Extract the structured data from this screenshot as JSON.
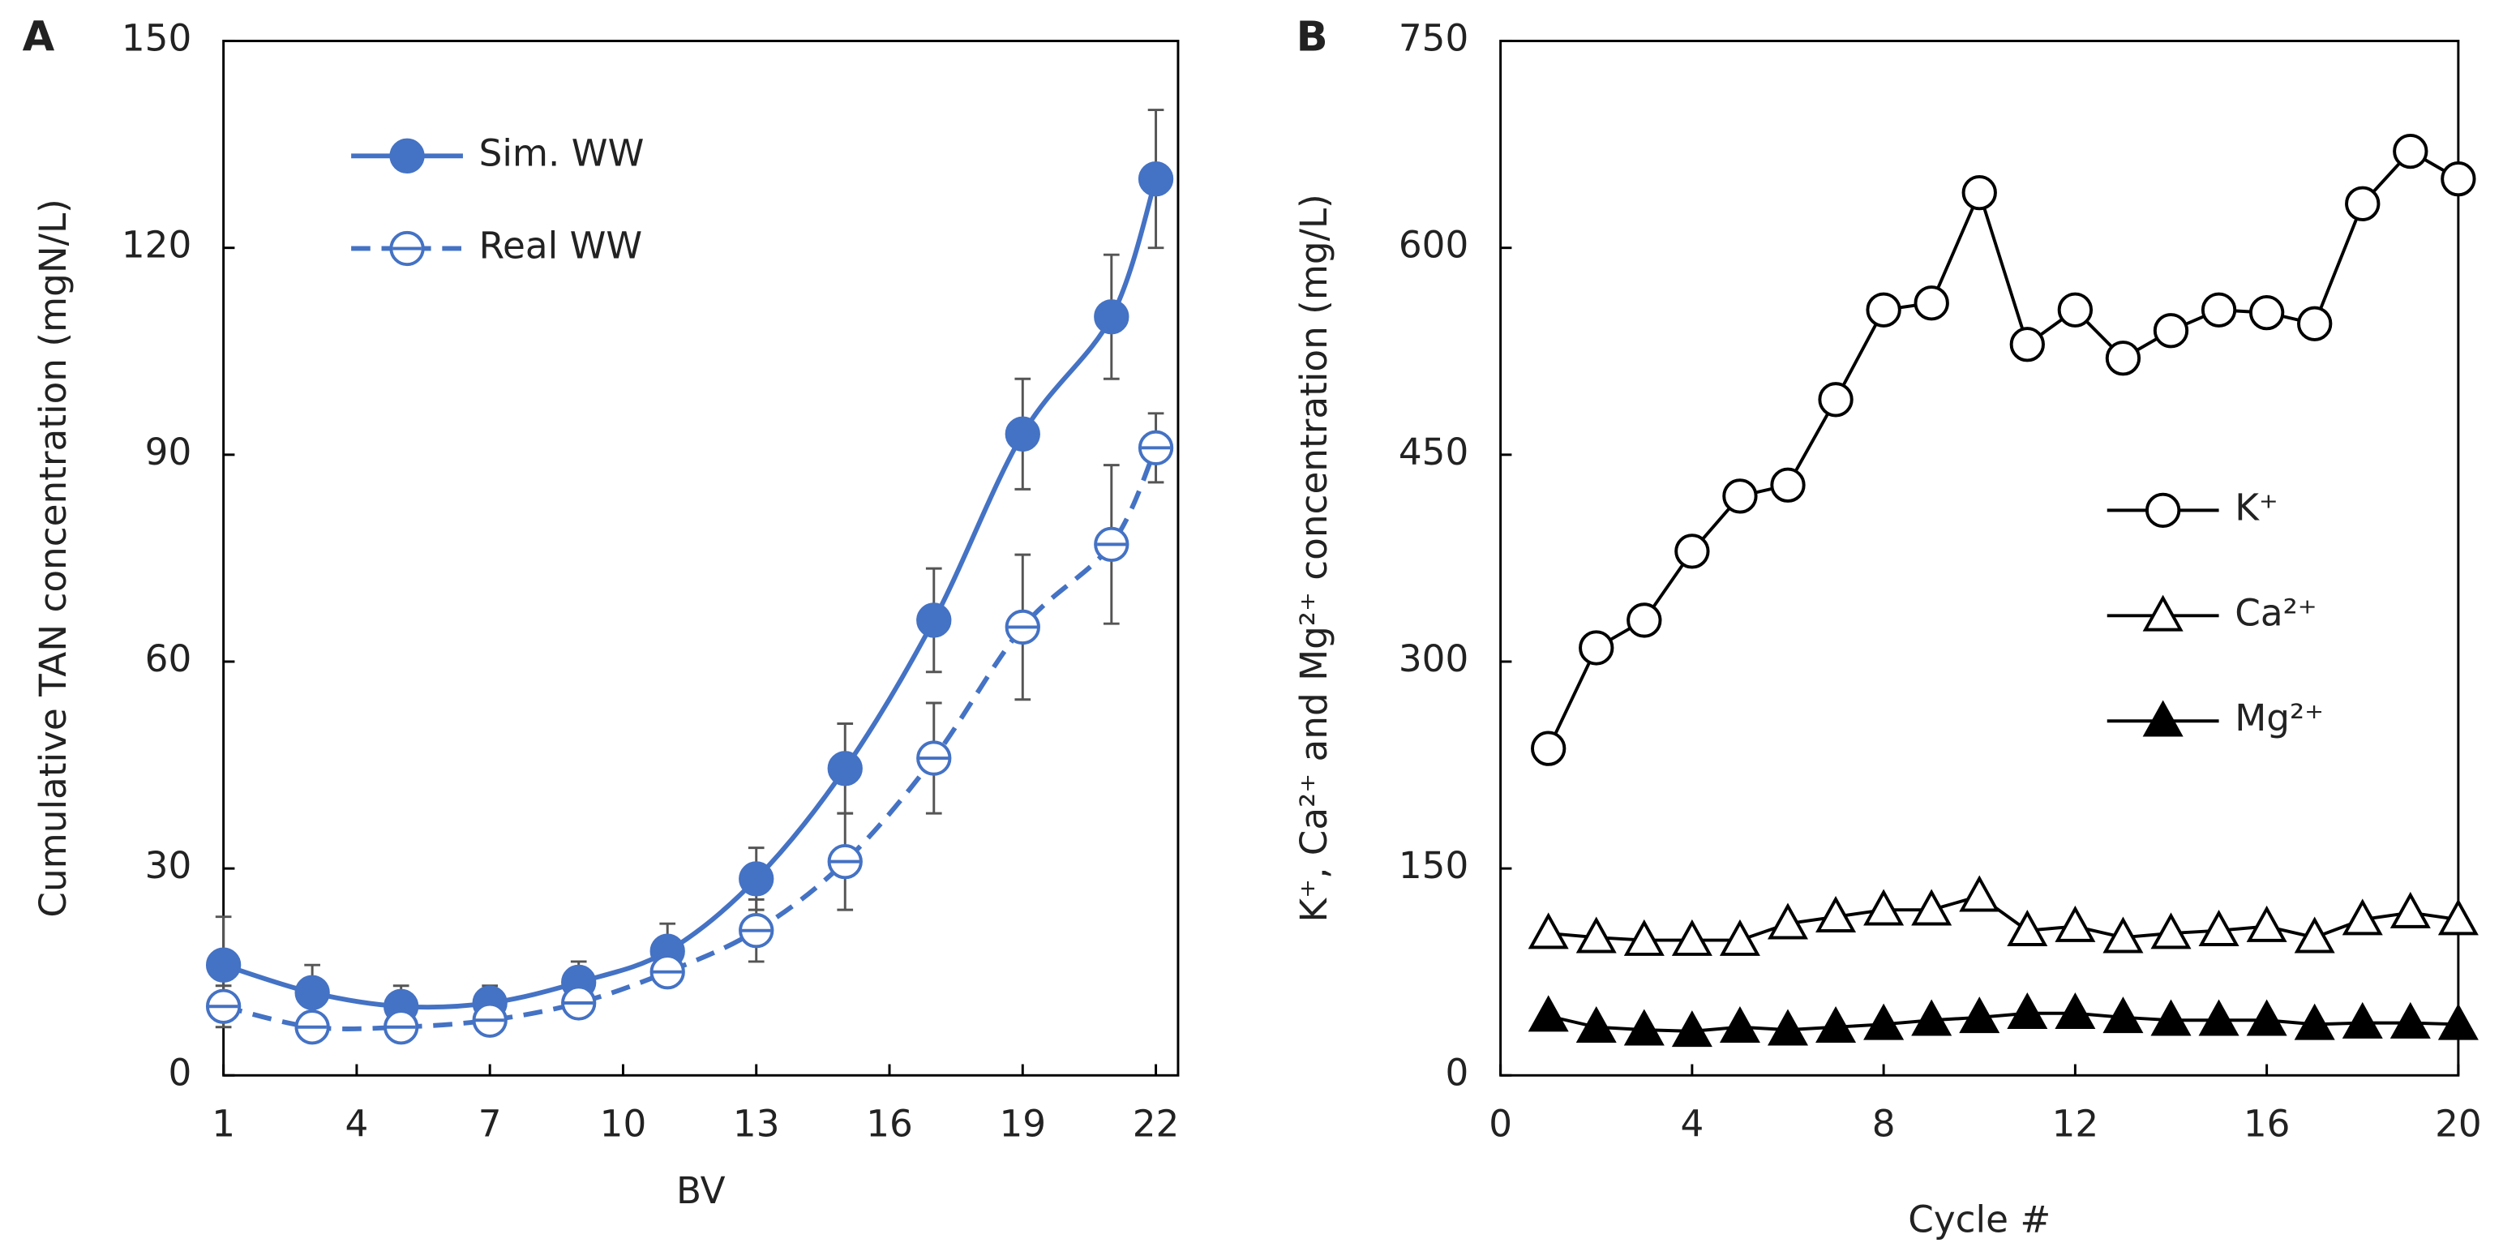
{
  "chart_data": [
    {
      "type": "line",
      "panel": "A",
      "x_label": "BV",
      "y_label": "Cumulative TAN concentration (mgN/L)",
      "x": [
        1,
        3,
        5,
        7,
        9,
        11,
        13,
        15,
        17,
        19,
        21,
        22
      ],
      "xlim": [
        1,
        22.5
      ],
      "xticks": [
        1,
        4,
        7,
        10,
        13,
        16,
        19,
        22
      ],
      "ylim": [
        0,
        150
      ],
      "yticks": [
        0,
        30,
        60,
        90,
        120,
        150
      ],
      "legend": "upper left",
      "smooth": true,
      "series": [
        {
          "name": "Sim. WW",
          "color": "#4472c4",
          "marker": "circle",
          "linestyle": "solid",
          "values": [
            16,
            12,
            10,
            10.5,
            13.5,
            18,
            28.5,
            44.5,
            66,
            93,
            110,
            130
          ],
          "errors": [
            7,
            4,
            3,
            2.5,
            3,
            4,
            4.5,
            6.5,
            7.5,
            8,
            9,
            10
          ]
        },
        {
          "name": "Real WW",
          "color": "#4472c4",
          "marker": "open-circle",
          "linestyle": "dashed",
          "values": [
            10,
            7,
            7,
            8,
            10.5,
            15,
            21,
            31,
            46,
            65,
            77,
            91
          ],
          "errors": [
            3,
            2,
            2,
            2,
            2,
            2,
            4.5,
            7,
            8,
            10.5,
            11.5,
            5
          ]
        }
      ]
    },
    {
      "type": "line",
      "panel": "B",
      "x_label": "Cycle #",
      "y_label": "K⁺, Ca²⁺ and Mg²⁺ concentration (mg/L)",
      "x": [
        1,
        2,
        3,
        4,
        5,
        6,
        7,
        8,
        9,
        10,
        11,
        12,
        13,
        14,
        15,
        16,
        17,
        18,
        19,
        20
      ],
      "xlim": [
        0,
        20
      ],
      "xticks": [
        0,
        4,
        8,
        12,
        16,
        20
      ],
      "ylim": [
        0,
        750
      ],
      "yticks": [
        0,
        150,
        300,
        450,
        600,
        750
      ],
      "legend": "center right",
      "smooth": false,
      "series": [
        {
          "name": "K⁺",
          "color": "#000000",
          "marker": "open-circle",
          "linestyle": "solid",
          "values": [
            237,
            310,
            330,
            380,
            420,
            428,
            490,
            555,
            560,
            640,
            530,
            555,
            520,
            540,
            555,
            553,
            545,
            632,
            670,
            650
          ]
        },
        {
          "name": "Ca²⁺",
          "color": "#000000",
          "marker": "open-triangle",
          "linestyle": "solid",
          "values": [
            103,
            100,
            98,
            98,
            98,
            110,
            115,
            120,
            120,
            130,
            105,
            108,
            100,
            103,
            105,
            108,
            100,
            113,
            118,
            113
          ]
        },
        {
          "name": "Mg²⁺",
          "color": "#000000",
          "marker": "triangle",
          "linestyle": "solid",
          "values": [
            43,
            35,
            33,
            32,
            35,
            33,
            35,
            37,
            40,
            42,
            45,
            45,
            42,
            40,
            40,
            40,
            37,
            38,
            38,
            37
          ]
        }
      ]
    }
  ]
}
